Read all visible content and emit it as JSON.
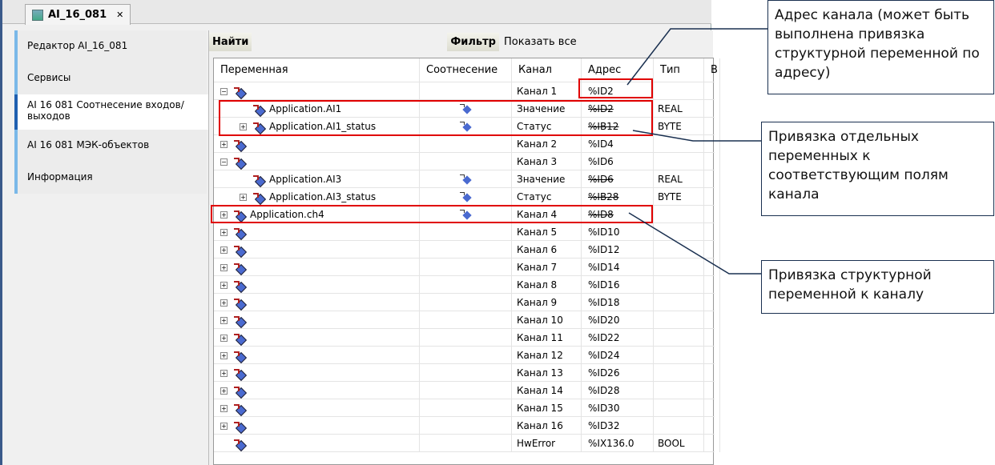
{
  "tab": {
    "title": "AI_16_081",
    "close": "✕"
  },
  "sidebar": {
    "items": [
      {
        "label": "Редактор AI_16_081"
      },
      {
        "label": "Сервисы"
      },
      {
        "label": "AI 16 081 Соотнесение входов/выходов",
        "active": true
      },
      {
        "label": "AI 16 081 МЭК-объектов"
      },
      {
        "label": "Информация"
      }
    ]
  },
  "toolbar": {
    "find": "Найти",
    "filter": "Фильтр",
    "filter_value": "Показать все"
  },
  "columns": [
    "Переменная",
    "Соотнесение",
    "Канал",
    "Адрес",
    "Тип",
    "В"
  ],
  "rows": [
    {
      "level": 0,
      "exp": "−",
      "var": "",
      "map": false,
      "channel": "Канал 1",
      "addr": "%ID2",
      "strike": false,
      "type": ""
    },
    {
      "level": 1,
      "exp": "",
      "var": "Application.AI1",
      "map": true,
      "channel": "Значение",
      "addr": "%ID2",
      "strike": true,
      "type": "REAL"
    },
    {
      "level": 1,
      "exp": "+",
      "var": "Application.AI1_status",
      "map": true,
      "channel": "Статус",
      "addr": "%IB12",
      "strike": true,
      "type": "BYTE"
    },
    {
      "level": 0,
      "exp": "+",
      "var": "",
      "map": false,
      "channel": "Канал 2",
      "addr": "%ID4",
      "strike": false,
      "type": ""
    },
    {
      "level": 0,
      "exp": "−",
      "var": "",
      "map": false,
      "channel": "Канал 3",
      "addr": "%ID6",
      "strike": false,
      "type": ""
    },
    {
      "level": 1,
      "exp": "",
      "var": "Application.AI3",
      "map": true,
      "channel": "Значение",
      "addr": "%ID6",
      "strike": true,
      "type": "REAL"
    },
    {
      "level": 1,
      "exp": "+",
      "var": "Application.AI3_status",
      "map": true,
      "channel": "Статус",
      "addr": "%IB28",
      "strike": true,
      "type": "BYTE"
    },
    {
      "level": 0,
      "exp": "+",
      "var": "Application.ch4",
      "map": true,
      "channel": "Канал 4",
      "addr": "%ID8",
      "strike": true,
      "type": ""
    },
    {
      "level": 0,
      "exp": "+",
      "var": "",
      "map": false,
      "channel": "Канал 5",
      "addr": "%ID10",
      "strike": false,
      "type": ""
    },
    {
      "level": 0,
      "exp": "+",
      "var": "",
      "map": false,
      "channel": "Канал 6",
      "addr": "%ID12",
      "strike": false,
      "type": ""
    },
    {
      "level": 0,
      "exp": "+",
      "var": "",
      "map": false,
      "channel": "Канал 7",
      "addr": "%ID14",
      "strike": false,
      "type": ""
    },
    {
      "level": 0,
      "exp": "+",
      "var": "",
      "map": false,
      "channel": "Канал 8",
      "addr": "%ID16",
      "strike": false,
      "type": ""
    },
    {
      "level": 0,
      "exp": "+",
      "var": "",
      "map": false,
      "channel": "Канал 9",
      "addr": "%ID18",
      "strike": false,
      "type": ""
    },
    {
      "level": 0,
      "exp": "+",
      "var": "",
      "map": false,
      "channel": "Канал 10",
      "addr": "%ID20",
      "strike": false,
      "type": ""
    },
    {
      "level": 0,
      "exp": "+",
      "var": "",
      "map": false,
      "channel": "Канал 11",
      "addr": "%ID22",
      "strike": false,
      "type": ""
    },
    {
      "level": 0,
      "exp": "+",
      "var": "",
      "map": false,
      "channel": "Канал 12",
      "addr": "%ID24",
      "strike": false,
      "type": ""
    },
    {
      "level": 0,
      "exp": "+",
      "var": "",
      "map": false,
      "channel": "Канал 13",
      "addr": "%ID26",
      "strike": false,
      "type": ""
    },
    {
      "level": 0,
      "exp": "+",
      "var": "",
      "map": false,
      "channel": "Канал 14",
      "addr": "%ID28",
      "strike": false,
      "type": ""
    },
    {
      "level": 0,
      "exp": "+",
      "var": "",
      "map": false,
      "channel": "Канал 15",
      "addr": "%ID30",
      "strike": false,
      "type": ""
    },
    {
      "level": 0,
      "exp": "+",
      "var": "",
      "map": false,
      "channel": "Канал 16",
      "addr": "%ID32",
      "strike": false,
      "type": ""
    },
    {
      "level": 0,
      "exp": "",
      "var": "",
      "map": false,
      "channel": "HwError",
      "addr": "%IX136.0",
      "strike": false,
      "type": "BOOL"
    }
  ],
  "annotations": [
    {
      "text": "Адрес канала (может быть выполнена привязка структурной переменной по адресу)"
    },
    {
      "text": "Привязка отдельных переменных к соответствующим полям канала"
    },
    {
      "text": "Привязка структурной переменной к каналу"
    }
  ],
  "colors": {
    "highlight": "#e00000",
    "callout": "#1a3050"
  }
}
